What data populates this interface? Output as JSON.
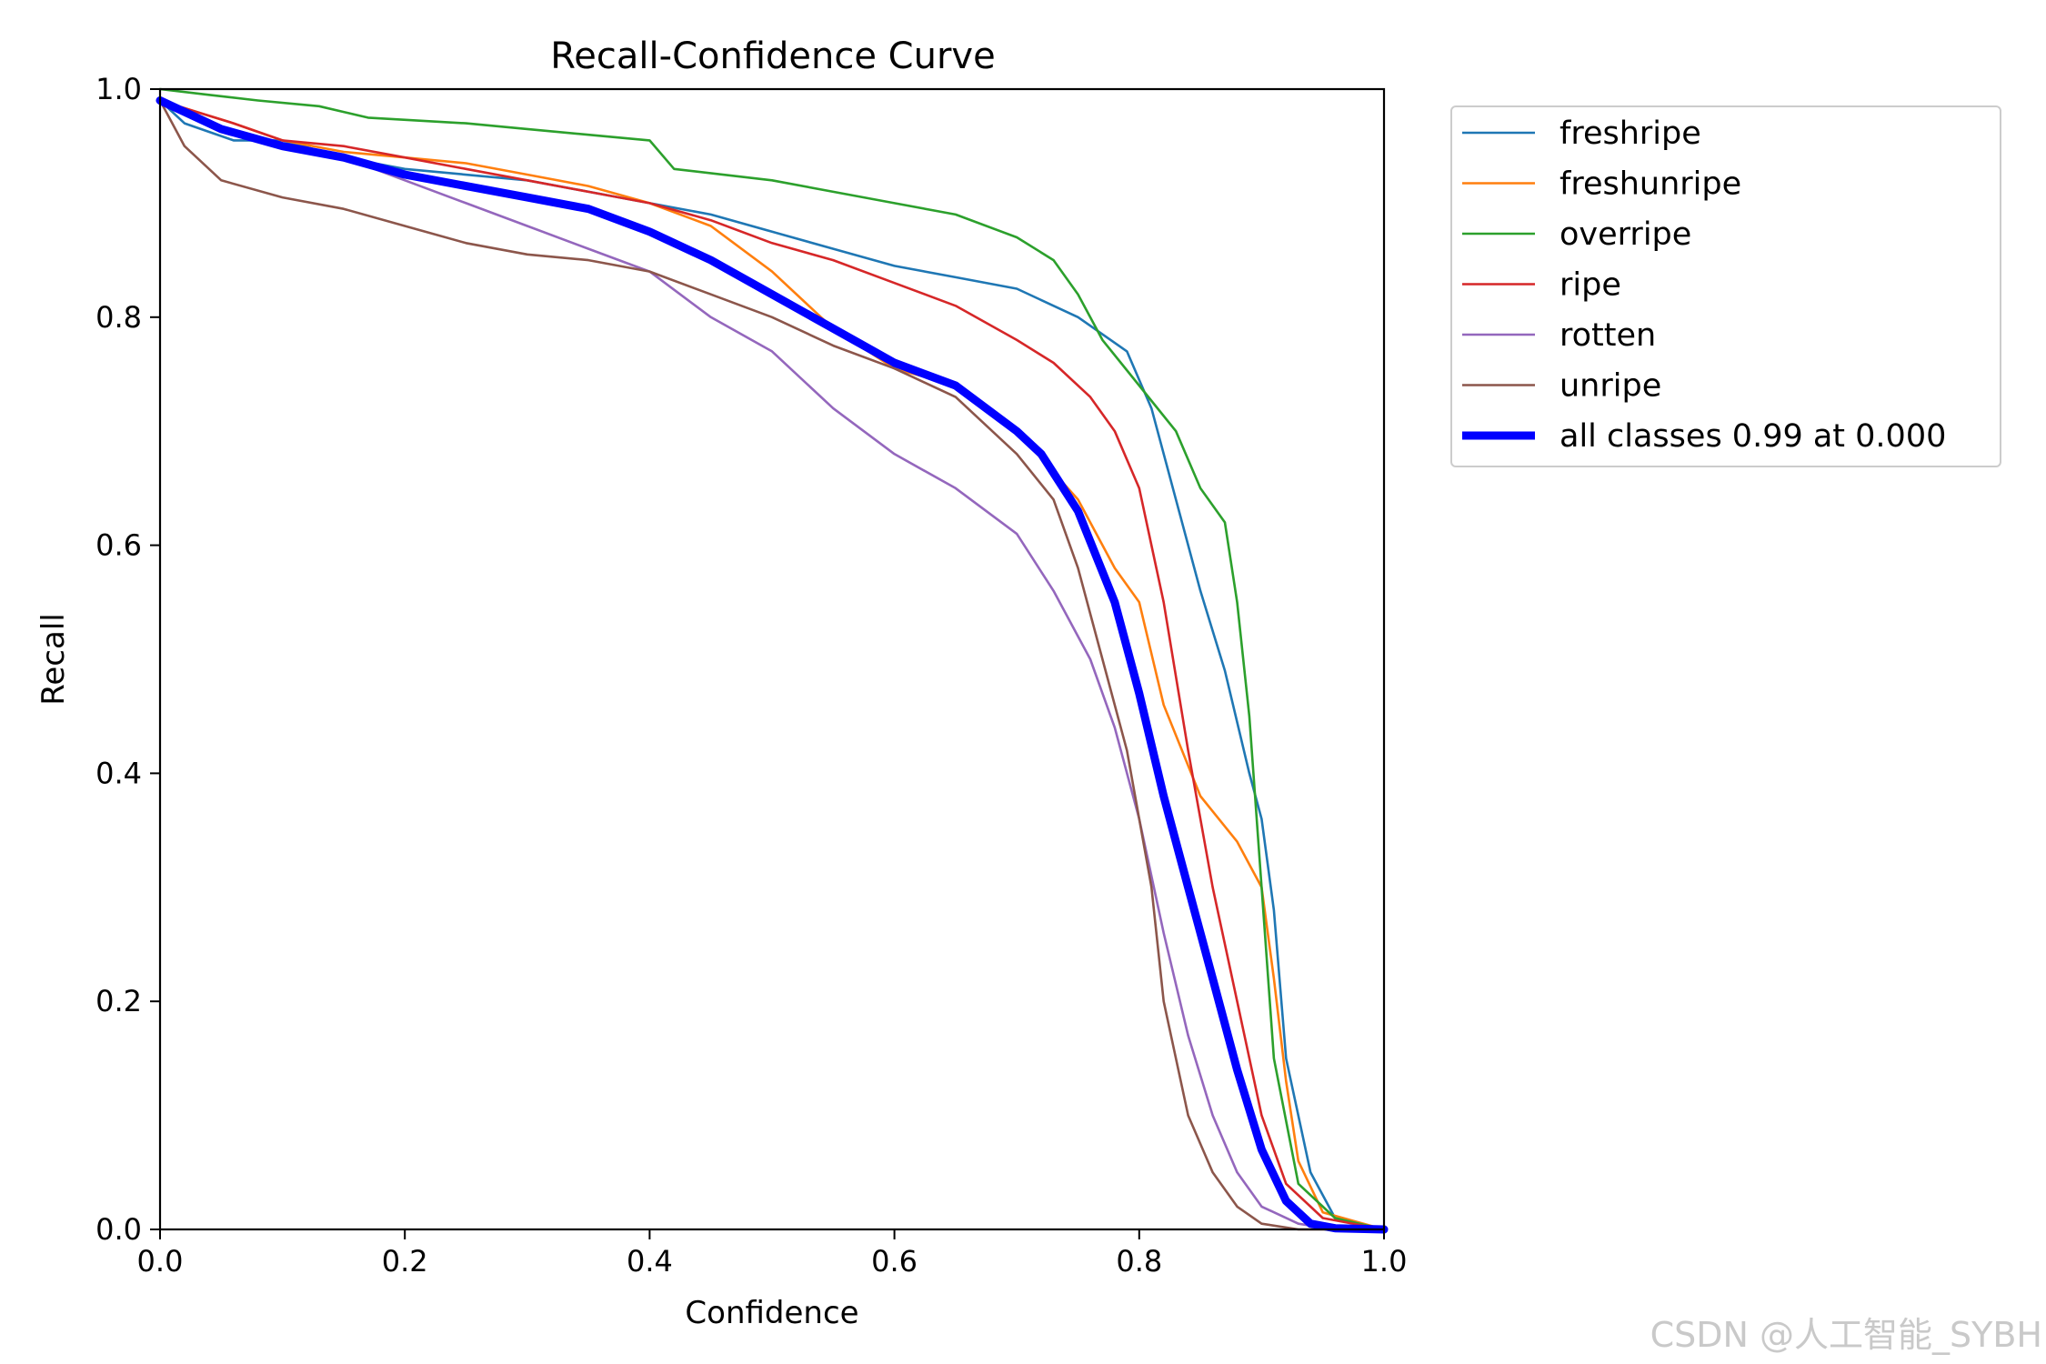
{
  "chart_data": {
    "type": "line",
    "title": "Recall-Confidence Curve",
    "xlabel": "Confidence",
    "ylabel": "Recall",
    "xlim": [
      0.0,
      1.0
    ],
    "ylim": [
      0.0,
      1.0
    ],
    "xticks": [
      "0.0",
      "0.2",
      "0.4",
      "0.6",
      "0.8",
      "1.0"
    ],
    "yticks": [
      "0.0",
      "0.2",
      "0.4",
      "0.6",
      "0.8",
      "1.0"
    ],
    "grid": false,
    "legend_position": "outside top-right",
    "series": [
      {
        "name": "freshripe",
        "color": "#1f77b4",
        "x": [
          0.0,
          0.02,
          0.06,
          0.1,
          0.15,
          0.2,
          0.3,
          0.4,
          0.45,
          0.5,
          0.55,
          0.6,
          0.65,
          0.7,
          0.75,
          0.79,
          0.81,
          0.83,
          0.85,
          0.87,
          0.89,
          0.9,
          0.91,
          0.92,
          0.94,
          0.96,
          1.0
        ],
        "y": [
          0.99,
          0.97,
          0.955,
          0.955,
          0.94,
          0.93,
          0.92,
          0.9,
          0.89,
          0.875,
          0.86,
          0.845,
          0.835,
          0.825,
          0.8,
          0.77,
          0.72,
          0.64,
          0.56,
          0.49,
          0.4,
          0.36,
          0.28,
          0.15,
          0.05,
          0.01,
          0.0
        ]
      },
      {
        "name": "freshunripe",
        "color": "#ff7f0e",
        "x": [
          0.0,
          0.03,
          0.06,
          0.1,
          0.15,
          0.2,
          0.25,
          0.3,
          0.35,
          0.4,
          0.45,
          0.5,
          0.55,
          0.6,
          0.65,
          0.7,
          0.75,
          0.78,
          0.8,
          0.82,
          0.85,
          0.88,
          0.9,
          0.91,
          0.92,
          0.93,
          0.95,
          1.0
        ],
        "y": [
          0.99,
          0.98,
          0.97,
          0.955,
          0.945,
          0.94,
          0.935,
          0.925,
          0.915,
          0.9,
          0.88,
          0.84,
          0.79,
          0.755,
          0.74,
          0.7,
          0.64,
          0.58,
          0.55,
          0.46,
          0.38,
          0.34,
          0.3,
          0.22,
          0.13,
          0.06,
          0.015,
          0.0
        ]
      },
      {
        "name": "overripe",
        "color": "#2ca02c",
        "x": [
          0.0,
          0.04,
          0.08,
          0.13,
          0.17,
          0.25,
          0.3,
          0.35,
          0.4,
          0.42,
          0.5,
          0.55,
          0.6,
          0.65,
          0.7,
          0.73,
          0.75,
          0.77,
          0.8,
          0.83,
          0.85,
          0.87,
          0.88,
          0.89,
          0.9,
          0.91,
          0.93,
          0.96,
          1.0
        ],
        "y": [
          1.0,
          0.995,
          0.99,
          0.985,
          0.975,
          0.97,
          0.965,
          0.96,
          0.955,
          0.93,
          0.92,
          0.91,
          0.9,
          0.89,
          0.87,
          0.85,
          0.82,
          0.78,
          0.74,
          0.7,
          0.65,
          0.62,
          0.55,
          0.45,
          0.3,
          0.15,
          0.04,
          0.01,
          0.0
        ]
      },
      {
        "name": "ripe",
        "color": "#d62728",
        "x": [
          0.0,
          0.03,
          0.06,
          0.1,
          0.15,
          0.2,
          0.25,
          0.3,
          0.35,
          0.4,
          0.45,
          0.5,
          0.55,
          0.6,
          0.65,
          0.7,
          0.73,
          0.76,
          0.78,
          0.8,
          0.82,
          0.84,
          0.86,
          0.88,
          0.9,
          0.92,
          0.95,
          1.0
        ],
        "y": [
          0.99,
          0.98,
          0.97,
          0.955,
          0.95,
          0.94,
          0.93,
          0.92,
          0.91,
          0.9,
          0.885,
          0.865,
          0.85,
          0.83,
          0.81,
          0.78,
          0.76,
          0.73,
          0.7,
          0.65,
          0.55,
          0.42,
          0.3,
          0.2,
          0.1,
          0.04,
          0.01,
          0.0
        ]
      },
      {
        "name": "rotten",
        "color": "#9467bd",
        "x": [
          0.0,
          0.03,
          0.06,
          0.1,
          0.15,
          0.2,
          0.25,
          0.3,
          0.35,
          0.4,
          0.45,
          0.5,
          0.55,
          0.6,
          0.65,
          0.7,
          0.73,
          0.76,
          0.78,
          0.8,
          0.82,
          0.84,
          0.86,
          0.88,
          0.9,
          0.93,
          0.96,
          1.0
        ],
        "y": [
          0.99,
          0.975,
          0.96,
          0.95,
          0.94,
          0.92,
          0.9,
          0.88,
          0.86,
          0.84,
          0.8,
          0.77,
          0.72,
          0.68,
          0.65,
          0.61,
          0.56,
          0.5,
          0.44,
          0.36,
          0.26,
          0.17,
          0.1,
          0.05,
          0.02,
          0.005,
          0.0,
          0.0
        ]
      },
      {
        "name": "unripe",
        "color": "#8c564b",
        "x": [
          0.0,
          0.02,
          0.05,
          0.1,
          0.15,
          0.2,
          0.25,
          0.3,
          0.35,
          0.4,
          0.45,
          0.5,
          0.55,
          0.6,
          0.65,
          0.7,
          0.73,
          0.75,
          0.77,
          0.79,
          0.81,
          0.82,
          0.84,
          0.86,
          0.88,
          0.9,
          0.93,
          1.0
        ],
        "y": [
          0.99,
          0.95,
          0.92,
          0.905,
          0.895,
          0.88,
          0.865,
          0.855,
          0.85,
          0.84,
          0.82,
          0.8,
          0.775,
          0.755,
          0.73,
          0.68,
          0.64,
          0.58,
          0.5,
          0.42,
          0.3,
          0.2,
          0.1,
          0.05,
          0.02,
          0.005,
          0.0,
          0.0
        ]
      },
      {
        "name": "all classes 0.99 at 0.000",
        "color": "#0000ff",
        "bold": true,
        "x": [
          0.0,
          0.05,
          0.1,
          0.15,
          0.2,
          0.25,
          0.3,
          0.35,
          0.4,
          0.45,
          0.5,
          0.55,
          0.6,
          0.65,
          0.7,
          0.72,
          0.75,
          0.78,
          0.8,
          0.82,
          0.84,
          0.86,
          0.88,
          0.9,
          0.92,
          0.94,
          0.96,
          1.0
        ],
        "y": [
          0.99,
          0.965,
          0.95,
          0.94,
          0.925,
          0.915,
          0.905,
          0.895,
          0.875,
          0.85,
          0.82,
          0.79,
          0.76,
          0.74,
          0.7,
          0.68,
          0.63,
          0.55,
          0.47,
          0.38,
          0.3,
          0.22,
          0.14,
          0.07,
          0.025,
          0.005,
          0.001,
          0.0
        ]
      }
    ]
  },
  "watermark": "CSDN @人工智能_SYBH"
}
